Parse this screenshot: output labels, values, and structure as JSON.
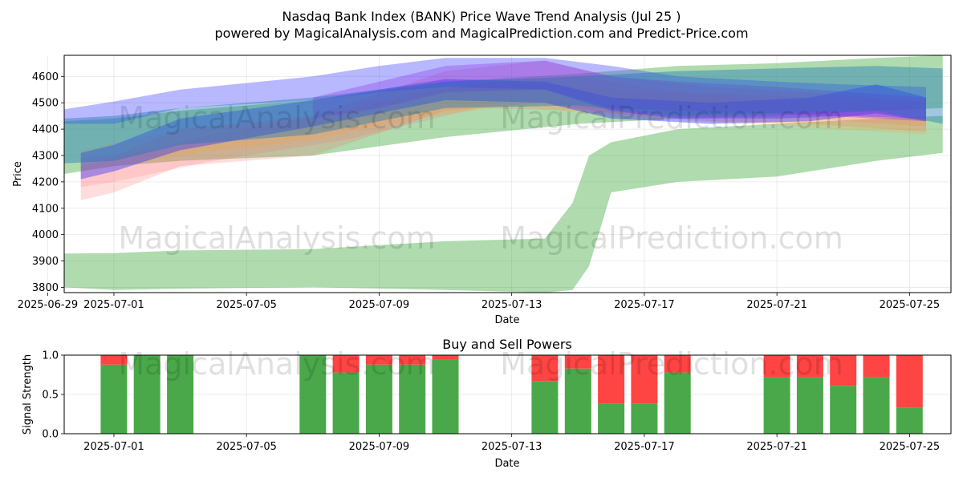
{
  "title": "Nasdaq Bank Index (BANK) Price Wave Trend Analysis (Jul 25 )",
  "subtitle": "powered by MagicalAnalysis.com and MagicalPrediction.com and Predict-Price.com",
  "watermarks": [
    "MagicalAnalysis.com",
    "MagicalPrediction.com"
  ],
  "chart_data": [
    {
      "type": "area",
      "title": "",
      "xlabel": "Date",
      "ylabel": "Price",
      "x_range": [
        "2025-06-29T12:00",
        "2025-07-26T06:00"
      ],
      "ylim": [
        3780,
        4680
      ],
      "y_ticks": [
        3800,
        3900,
        4000,
        4100,
        4200,
        4300,
        4400,
        4500,
        4600
      ],
      "x_ticks": [
        {
          "date": "2025-06-29",
          "label": "2025-06-29"
        },
        {
          "date": "2025-07-01",
          "label": "2025-07-01"
        },
        {
          "date": "2025-07-05",
          "label": "2025-07-05"
        },
        {
          "date": "2025-07-09",
          "label": "2025-07-09"
        },
        {
          "date": "2025-07-13",
          "label": "2025-07-13"
        },
        {
          "date": "2025-07-17",
          "label": "2025-07-17"
        },
        {
          "date": "2025-07-21",
          "label": "2025-07-21"
        },
        {
          "date": "2025-07-25",
          "label": "2025-07-25"
        }
      ],
      "grid": true,
      "bands": [
        {
          "color": "#2ca02c",
          "opacity": 0.38,
          "points": [
            [
              "2025-06-29T12:00",
              3800,
              3928
            ],
            [
              "2025-07-01",
              3790,
              3930
            ],
            [
              "2025-07-03",
              3795,
              3940
            ],
            [
              "2025-07-07",
              3800,
              3945
            ],
            [
              "2025-07-11",
              3790,
              3975
            ],
            [
              "2025-07-14",
              3780,
              3985
            ],
            [
              "2025-07-14T20:00",
              3790,
              4120
            ],
            [
              "2025-07-15T08:00",
              3880,
              4300
            ],
            [
              "2025-07-16",
              4160,
              4350
            ],
            [
              "2025-07-18",
              4200,
              4400
            ],
            [
              "2025-07-21",
              4220,
              4420
            ],
            [
              "2025-07-24",
              4280,
              4440
            ],
            [
              "2025-07-26",
              4310,
              4450
            ]
          ]
        },
        {
          "color": "#2ca02c",
          "opacity": 0.38,
          "points": [
            [
              "2025-06-29T12:00",
              4230,
              4430
            ],
            [
              "2025-07-01",
              4260,
              4440
            ],
            [
              "2025-07-03",
              4280,
              4470
            ],
            [
              "2025-07-07",
              4300,
              4510
            ],
            [
              "2025-07-11",
              4370,
              4580
            ],
            [
              "2025-07-15",
              4420,
              4610
            ],
            [
              "2025-07-18",
              4440,
              4640
            ],
            [
              "2025-07-21",
              4450,
              4650
            ],
            [
              "2025-07-24",
              4470,
              4670
            ],
            [
              "2025-07-26",
              4480,
              4680
            ]
          ]
        },
        {
          "color": "#ff6666",
          "opacity": 0.22,
          "points": [
            [
              "2025-06-30",
              4130,
              4290
            ],
            [
              "2025-07-01",
              4160,
              4300
            ],
            [
              "2025-07-03",
              4260,
              4400
            ],
            [
              "2025-07-07",
              4300,
              4450
            ],
            [
              "2025-07-11",
              4470,
              4620
            ],
            [
              "2025-07-14",
              4500,
              4660
            ],
            [
              "2025-07-16",
              4460,
              4600
            ],
            [
              "2025-07-19",
              4430,
              4560
            ],
            [
              "2025-07-22",
              4420,
              4540
            ],
            [
              "2025-07-25T12:00",
              4390,
              4500
            ]
          ]
        },
        {
          "color": "#ff6666",
          "opacity": 0.18,
          "points": [
            [
              "2025-06-30",
              4180,
              4260
            ],
            [
              "2025-07-01",
              4200,
              4290
            ],
            [
              "2025-07-04",
              4280,
              4380
            ],
            [
              "2025-07-08",
              4360,
              4470
            ],
            [
              "2025-07-12",
              4480,
              4580
            ],
            [
              "2025-07-15",
              4470,
              4600
            ],
            [
              "2025-07-18",
              4450,
              4540
            ],
            [
              "2025-07-22",
              4440,
              4520
            ],
            [
              "2025-07-25T12:00",
              4410,
              4510
            ]
          ]
        },
        {
          "color": "#ff9e3d",
          "opacity": 0.22,
          "points": [
            [
              "2025-06-30",
              4240,
              4320
            ],
            [
              "2025-07-03",
              4300,
              4400
            ],
            [
              "2025-07-07",
              4360,
              4440
            ],
            [
              "2025-07-10",
              4440,
              4540
            ],
            [
              "2025-07-13",
              4490,
              4580
            ],
            [
              "2025-07-16",
              4450,
              4550
            ],
            [
              "2025-07-20",
              4420,
              4520
            ],
            [
              "2025-07-25T12:00",
              4380,
              4480
            ]
          ]
        },
        {
          "color": "#4444ff",
          "opacity": 0.38,
          "points": [
            [
              "2025-06-29T12:00",
              4420,
              4475
            ],
            [
              "2025-07-01",
              4420,
              4505
            ],
            [
              "2025-07-03",
              4480,
              4550
            ],
            [
              "2025-07-07",
              4510,
              4600
            ],
            [
              "2025-07-09",
              4540,
              4640
            ],
            [
              "2025-07-11",
              4560,
              4670
            ],
            [
              "2025-07-14",
              4550,
              4670
            ],
            [
              "2025-07-16",
              4470,
              4640
            ],
            [
              "2025-07-18",
              4440,
              4600
            ],
            [
              "2025-07-21",
              4440,
              4580
            ],
            [
              "2025-07-23",
              4450,
              4570
            ],
            [
              "2025-07-25T12:00",
              4440,
              4560
            ]
          ]
        },
        {
          "color": "#3333ff",
          "opacity": 0.42,
          "points": [
            [
              "2025-06-30",
              4210,
              4310
            ],
            [
              "2025-07-01",
              4240,
              4340
            ],
            [
              "2025-07-03",
              4320,
              4440
            ],
            [
              "2025-07-07",
              4410,
              4510
            ],
            [
              "2025-07-11",
              4510,
              4590
            ],
            [
              "2025-07-14",
              4500,
              4580
            ],
            [
              "2025-07-16",
              4440,
              4520
            ],
            [
              "2025-07-19",
              4420,
              4500
            ],
            [
              "2025-07-22",
              4430,
              4520
            ],
            [
              "2025-07-24",
              4460,
              4570
            ],
            [
              "2025-07-25T12:00",
              4430,
              4520
            ]
          ]
        },
        {
          "color": "#8a2be2",
          "opacity": 0.32,
          "points": [
            [
              "2025-07-07",
              4440,
              4520
            ],
            [
              "2025-07-09",
              4480,
              4580
            ],
            [
              "2025-07-11",
              4540,
              4640
            ],
            [
              "2025-07-14",
              4550,
              4660
            ],
            [
              "2025-07-16",
              4480,
              4600
            ],
            [
              "2025-07-18",
              4470,
              4580
            ],
            [
              "2025-07-21",
              4460,
              4560
            ],
            [
              "2025-07-25T12:00",
              4430,
              4520
            ]
          ]
        },
        {
          "color": "#1f77b4",
          "opacity": 0.42,
          "points": [
            [
              "2025-06-29T12:00",
              4270,
              4440
            ],
            [
              "2025-07-01",
              4280,
              4450
            ],
            [
              "2025-07-03",
              4340,
              4480
            ],
            [
              "2025-07-07",
              4380,
              4520
            ],
            [
              "2025-07-11",
              4480,
              4580
            ],
            [
              "2025-07-15",
              4490,
              4600
            ],
            [
              "2025-07-18",
              4450,
              4620
            ],
            [
              "2025-07-21",
              4460,
              4630
            ],
            [
              "2025-07-24",
              4470,
              4640
            ],
            [
              "2025-07-26",
              4420,
              4630
            ]
          ]
        }
      ]
    },
    {
      "type": "bar",
      "title": "Buy and Sell Powers",
      "xlabel": "Date",
      "ylabel": "Signal Strength",
      "x_range": [
        "2025-06-29T12:00",
        "2025-07-26T06:00"
      ],
      "ylim": [
        0,
        1
      ],
      "y_ticks": [
        0.0,
        0.5,
        1.0
      ],
      "y_tick_labels": [
        "0.0",
        "0.5",
        "1.0"
      ],
      "x_ticks": [
        {
          "date": "2025-07-01",
          "label": "2025-07-01"
        },
        {
          "date": "2025-07-05",
          "label": "2025-07-05"
        },
        {
          "date": "2025-07-09",
          "label": "2025-07-09"
        },
        {
          "date": "2025-07-13",
          "label": "2025-07-13"
        },
        {
          "date": "2025-07-17",
          "label": "2025-07-17"
        },
        {
          "date": "2025-07-21",
          "label": "2025-07-21"
        },
        {
          "date": "2025-07-25",
          "label": "2025-07-25"
        }
      ],
      "grid": true,
      "buy_color": "#4aa84a",
      "sell_color": "#ff4444",
      "dates": [
        "2025-07-01",
        "2025-07-02",
        "2025-07-03",
        "2025-07-07",
        "2025-07-08",
        "2025-07-09",
        "2025-07-10",
        "2025-07-11",
        "2025-07-14",
        "2025-07-15",
        "2025-07-16",
        "2025-07-17",
        "2025-07-18",
        "2025-07-21",
        "2025-07-22",
        "2025-07-23",
        "2025-07-24",
        "2025-07-25"
      ],
      "buy": [
        0.88,
        1.0,
        1.0,
        1.0,
        0.78,
        0.88,
        0.88,
        0.94,
        0.67,
        0.83,
        0.38,
        0.38,
        0.78,
        0.72,
        0.72,
        0.61,
        0.72,
        0.33
      ]
    }
  ]
}
